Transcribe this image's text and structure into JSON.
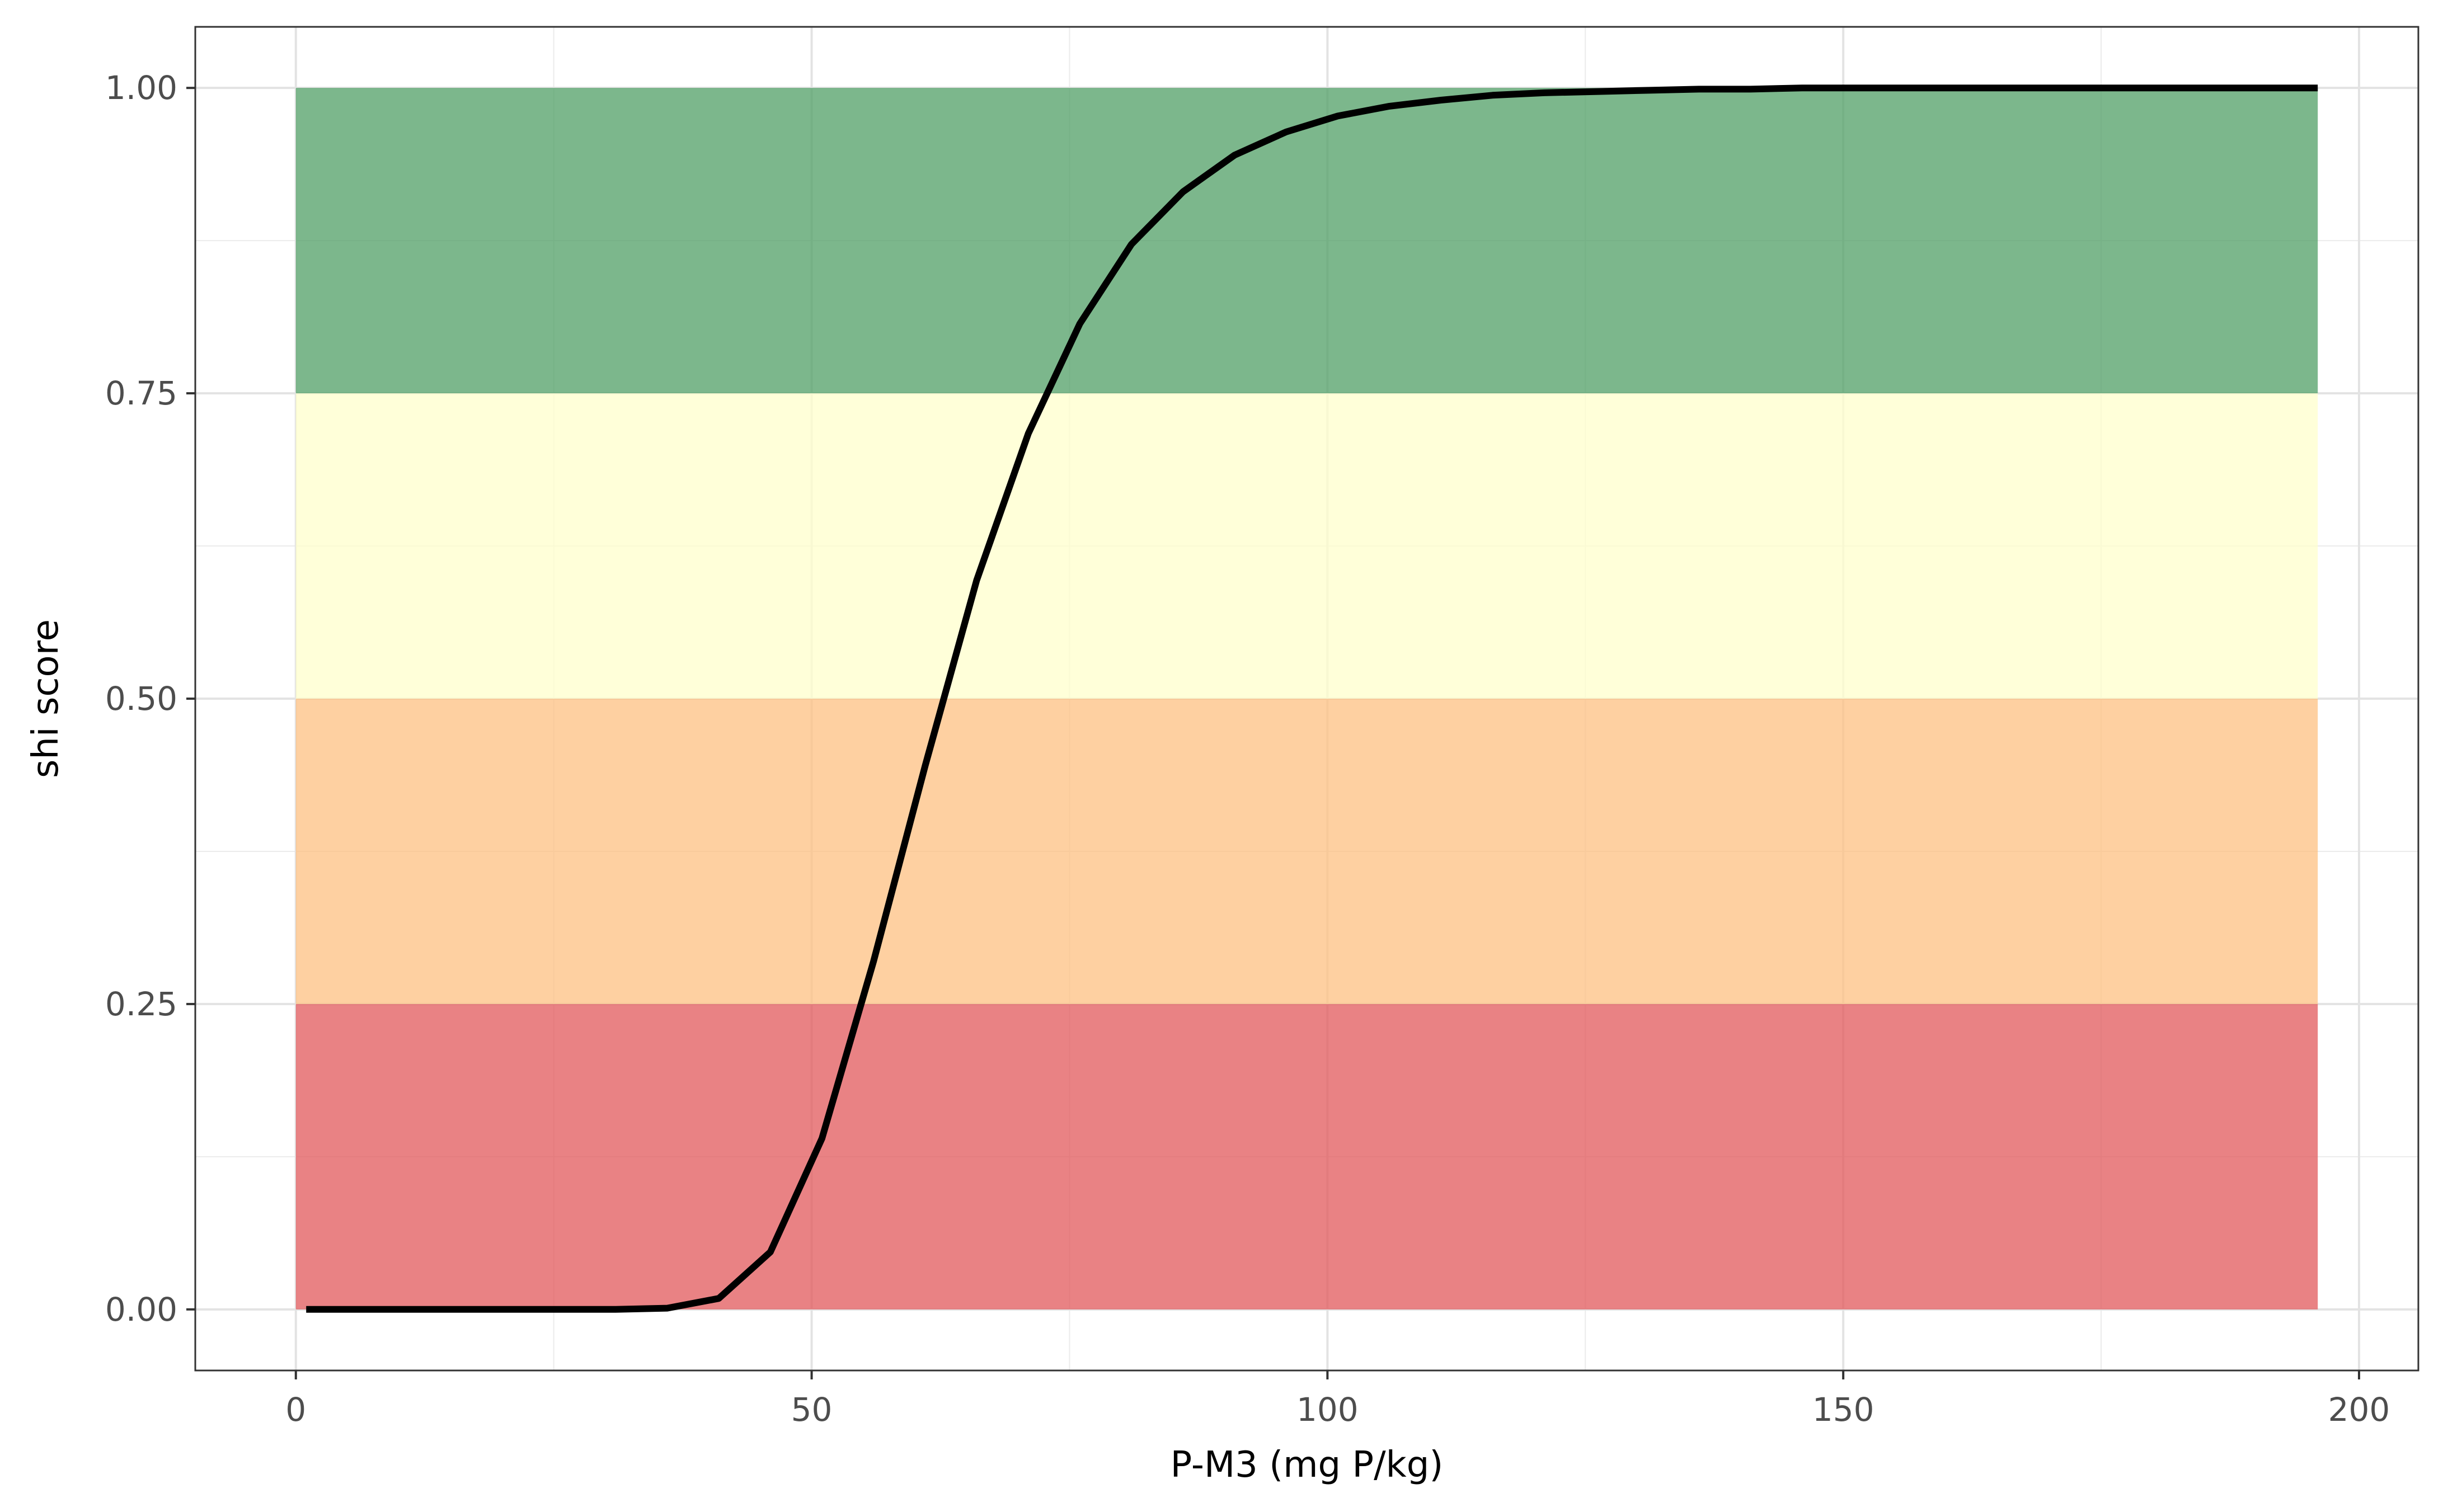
{
  "chart_data": {
    "type": "line",
    "xlabel": "P-M3 (mg P/kg)",
    "ylabel": "shi score",
    "xlim": [
      -9.75,
      205.75
    ],
    "ylim": [
      -0.05,
      1.05
    ],
    "x_ticks": [
      0,
      50,
      100,
      150,
      200
    ],
    "x_tick_labels": [
      "0",
      "50",
      "100",
      "150",
      "200"
    ],
    "y_ticks": [
      0,
      0.25,
      0.5,
      0.75,
      1.0
    ],
    "y_tick_labels": [
      "0.00",
      "0.25",
      "0.50",
      "0.75",
      "1.00"
    ],
    "grid": true,
    "bands": [
      {
        "y0": 0.0,
        "y1": 0.25,
        "x0": 0,
        "x1": 196,
        "color": "#e15759"
      },
      {
        "y0": 0.25,
        "y1": 0.5,
        "x0": 0,
        "x1": 196,
        "color": "#fdbf80"
      },
      {
        "y0": 0.5,
        "y1": 0.75,
        "x0": 0,
        "x1": 196,
        "color": "#ffffcc"
      },
      {
        "y0": 0.75,
        "y1": 1.0,
        "x0": 0,
        "x1": 196,
        "color": "#4e9e64"
      }
    ],
    "series": [
      {
        "color": "#000000",
        "x": [
          1,
          6,
          11,
          16,
          21,
          26,
          31,
          36,
          41,
          46,
          51,
          56,
          61,
          66,
          71,
          76,
          81,
          86,
          91,
          96,
          101,
          106,
          111,
          116,
          121,
          126,
          131,
          136,
          141,
          146,
          151,
          156,
          161,
          166,
          171,
          176,
          181,
          186,
          191,
          196
        ],
        "y": [
          0.0,
          0.0,
          0.0,
          0.0,
          0.0,
          0.0,
          0.0,
          0.001,
          0.009,
          0.047,
          0.14,
          0.285,
          0.445,
          0.597,
          0.717,
          0.807,
          0.872,
          0.915,
          0.945,
          0.964,
          0.977,
          0.985,
          0.99,
          0.994,
          0.996,
          0.997,
          0.998,
          0.999,
          0.999,
          1.0,
          1.0,
          1.0,
          1.0,
          1.0,
          1.0,
          1.0,
          1.0,
          1.0,
          1.0,
          1.0
        ]
      }
    ]
  }
}
